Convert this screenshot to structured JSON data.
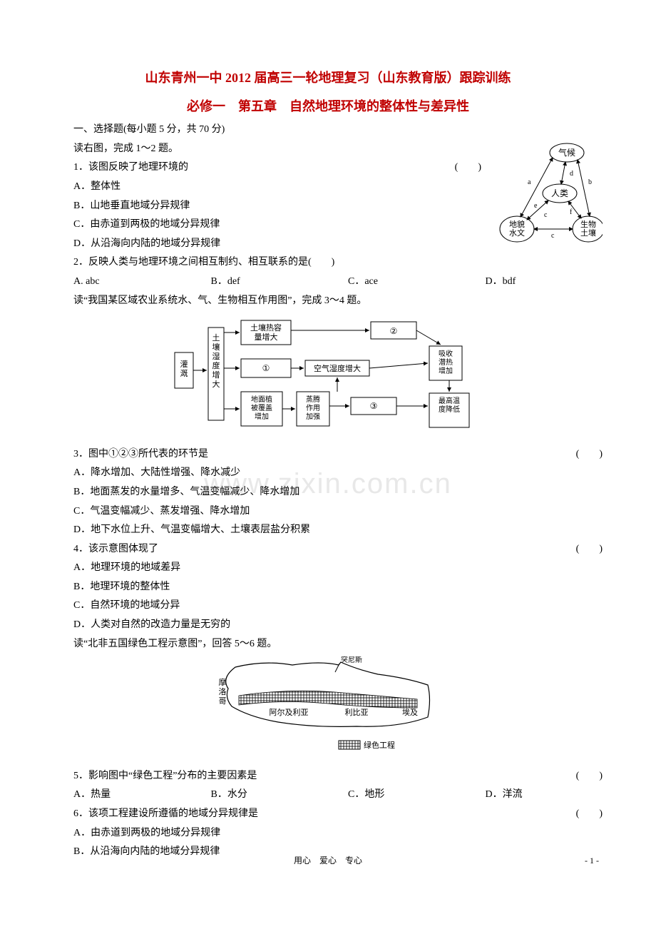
{
  "title": {
    "line1": "山东青州一中 2012 届高三一轮地理复习（山东教育版）跟踪训练",
    "line2": "必修一　第五章　自然地理环境的整体性与差异性",
    "color": "#c00000",
    "fontsize": 18
  },
  "section1": "一、选择题(每小题 5 分，共 70 分)",
  "intro12": "读右图，完成 1～2 题。",
  "q1": {
    "stem": "1．该图反映了地理环境的",
    "paren": "(　　)",
    "opts": [
      "A．整体性",
      "B．山地垂直地域分异规律",
      "C．由赤道到两极的地域分异规律",
      "D．从沿海向内陆的地域分异规律"
    ]
  },
  "q2": {
    "stem": "2．反映人类与地理环境之间相互制约、相互联系的是(　　)",
    "opts": [
      "A. abc",
      "B．def",
      "C．ace",
      "D．bdf"
    ]
  },
  "intro34": "读“我国某区域农业系统水、气、生物相互作用图”，完成 3～4 题。",
  "q3": {
    "stem": "3．图中①②③所代表的环节是",
    "paren": "(　　)",
    "opts": [
      "A．降水增加、大陆性增强、降水减少",
      "B．地面蒸发的水量增多、气温变幅减少、降水增加",
      "C．气温变幅减少、蒸发增强、降水增加",
      "D．地下水位上升、气温变幅增大、土壤表层盐分积累"
    ]
  },
  "q4": {
    "stem": "4．该示意图体现了",
    "paren": "(　　)",
    "opts": [
      "A．地理环境的地域差异",
      "B．地理环境的整体性",
      "C．自然环境的地域分异",
      "D．人类对自然的改造力量是无穷的"
    ]
  },
  "intro56": "读“北非五国绿色工程示意图”，回答 5～6 题。",
  "q5": {
    "stem": "5．影响图中“绿色工程”分布的主要因素是",
    "paren": "(　　)",
    "opts": [
      "A．热量",
      "B．水分",
      "C．地形",
      "D．洋流"
    ]
  },
  "q6": {
    "stem": "6．该项工程建设所遵循的地域分异规律是",
    "paren": "(　　)",
    "opts": [
      "A．由赤道到两极的地域分异规律",
      "B．从沿海向内陆的地域分异规律"
    ]
  },
  "fig1": {
    "nodes": {
      "top": "气候",
      "center": "人类",
      "bl1": "地貌",
      "bl2": "水文",
      "br1": "生物",
      "br2": "土壤"
    },
    "edge_labels": {
      "a": "a",
      "b": "b",
      "c_left": "c",
      "c_bottom": "c",
      "d": "d",
      "e": "e",
      "f": "f"
    },
    "stroke": "#000000",
    "fill": "#ffffff"
  },
  "fig2": {
    "boxes": {
      "irrigate": "灌\n溉",
      "soil_moist": "土\n壤\n湿\n度\n增\n大",
      "heat_cap": "土壤热容\n量增大",
      "circ1": "①",
      "veg": "地面植\n被覆盖\n增加",
      "evap": "蒸腾\n作用\n加强",
      "humid": "空气湿度增大",
      "circ2": "②",
      "latent": "吸收\n潜热\n增加",
      "circ3": "③",
      "maxtemp": "最高温\n度降低"
    },
    "stroke": "#000000"
  },
  "fig3": {
    "labels": {
      "morocco": "摩\n洛\n哥",
      "tunis": "突尼斯",
      "algeria": "阿尔及利亚",
      "libya": "利比亚",
      "egypt": "埃及",
      "legend": "绿色工程"
    },
    "stroke": "#000000"
  },
  "watermark": "www.zixin.com.cn",
  "footer": {
    "center": "用心　爱心　专心",
    "page": "- 1 -"
  }
}
